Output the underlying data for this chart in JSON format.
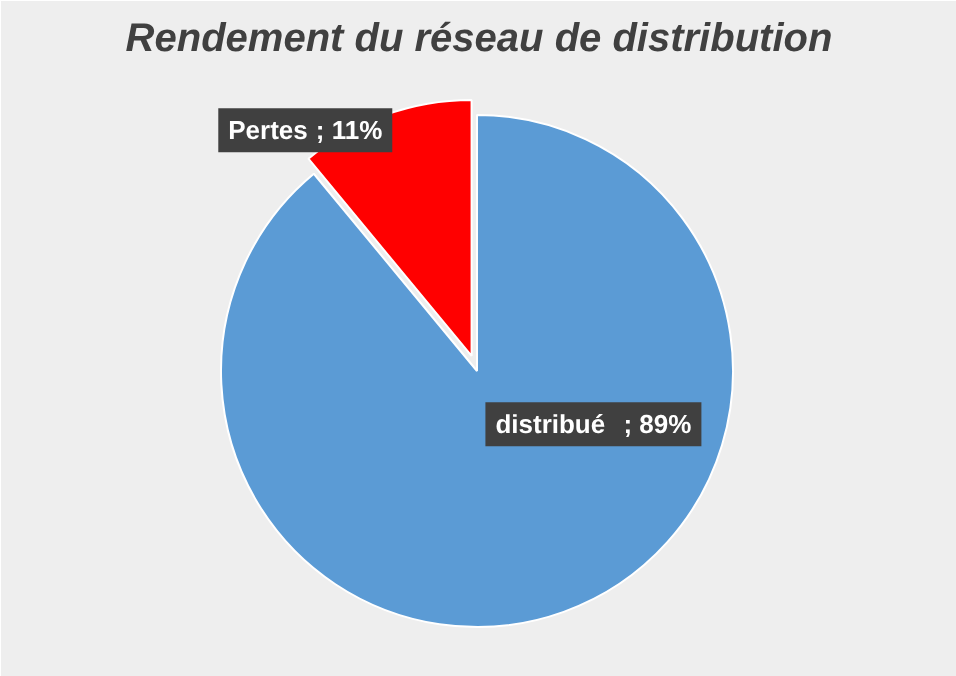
{
  "chart_data": {
    "type": "pie",
    "title": "Rendement du réseau de distribution",
    "categories": [
      "distribué",
      "Pertes"
    ],
    "values": [
      89,
      11
    ],
    "colors": [
      "#5b9bd5",
      "#ff0000"
    ],
    "value_labels": [
      "; 89%",
      "; 11%"
    ]
  }
}
